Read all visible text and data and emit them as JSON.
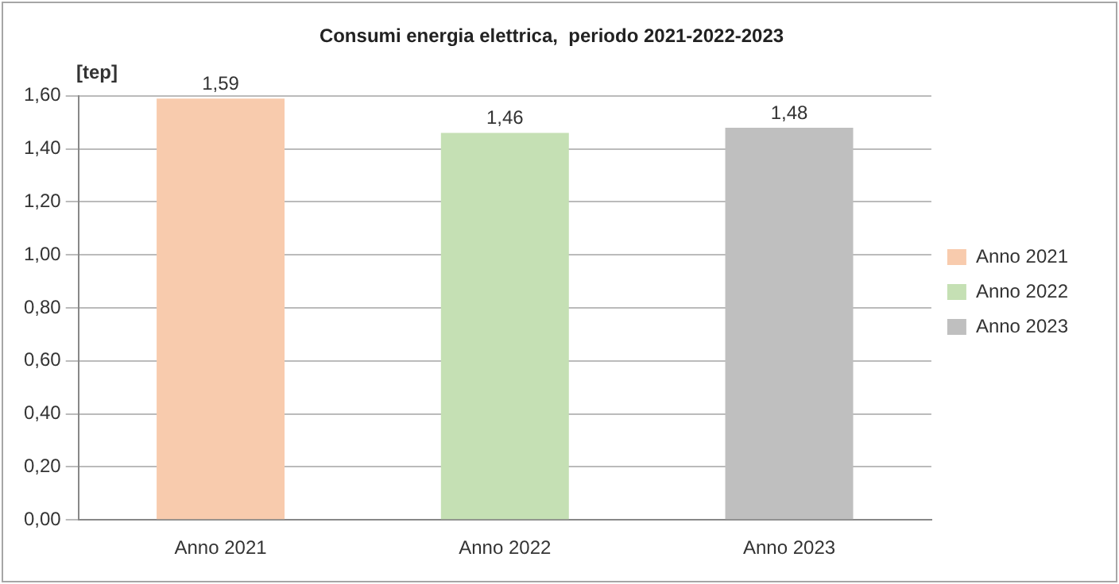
{
  "chart_data": {
    "type": "bar",
    "title": "Consumi energia elettrica,  periodo 2021-2022-2023",
    "ylabel": "[tep]",
    "categories": [
      "Anno 2021",
      "Anno 2022",
      "Anno 2023"
    ],
    "series": [
      {
        "name": "Anno 2021",
        "color": "#f8cbad",
        "values": [
          1.59,
          null,
          null
        ],
        "value_labels": [
          "1,59",
          null,
          null
        ]
      },
      {
        "name": "Anno 2022",
        "color": "#c5e0b4",
        "values": [
          null,
          1.46,
          null
        ],
        "value_labels": [
          null,
          "1,46",
          null
        ]
      },
      {
        "name": "Anno 2023",
        "color": "#bfbfbf",
        "values": [
          null,
          null,
          1.48
        ],
        "value_labels": [
          null,
          null,
          "1,48"
        ]
      }
    ],
    "ylim": [
      0,
      1.6
    ],
    "yticks": [
      {
        "value": 0,
        "label": "0,00"
      },
      {
        "value": 0.2,
        "label": "0,20"
      },
      {
        "value": 0.4,
        "label": "0,40"
      },
      {
        "value": 0.6,
        "label": "0,60"
      },
      {
        "value": 0.8,
        "label": "0,80"
      },
      {
        "value": 1.0,
        "label": "1,00"
      },
      {
        "value": 1.2,
        "label": "1,20"
      },
      {
        "value": 1.4,
        "label": "1,40"
      },
      {
        "value": 1.6,
        "label": "1,60"
      }
    ],
    "grid": "y",
    "legend": "right"
  }
}
